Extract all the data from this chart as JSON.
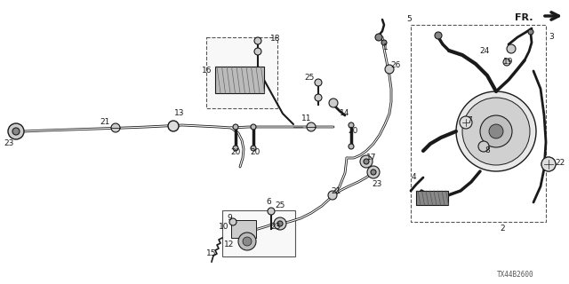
{
  "bg_color": "#ffffff",
  "part_id": "TX44B2600",
  "line_color": "#1a1a1a",
  "fig_w": 6.4,
  "fig_h": 3.2,
  "dpi": 100
}
